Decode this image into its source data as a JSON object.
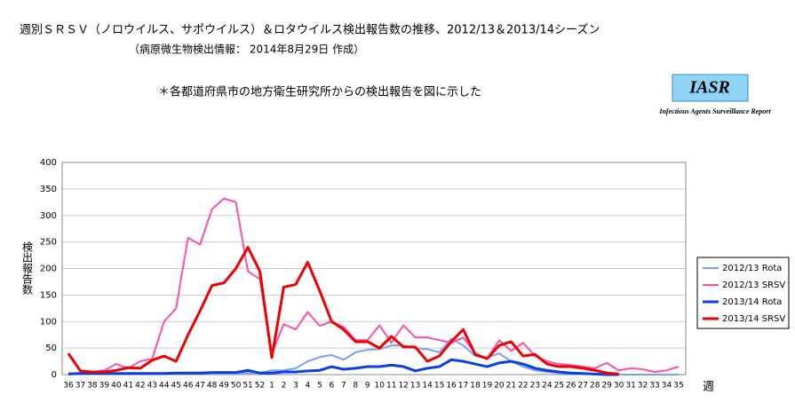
{
  "chart_data": {
    "type": "line",
    "title": "週別ＳＲＳＶ（ノロウイルス、サポウイルス）＆ロタウイルス検出報告数の推移、2012/13＆2013/14シーズン",
    "subtitle": "（病原微生物検出情報： 2014年8月29日 作成）",
    "annotation": "＊各都道府県市の地方衛生研究所からの検出報告を図に示した",
    "logo": "IASR",
    "logo_caption": "Infectious Agents Surveillance Report",
    "ylabel": "検出報告数",
    "xlabel": "週",
    "categories": [
      "36",
      "37",
      "38",
      "39",
      "40",
      "41",
      "42",
      "43",
      "44",
      "45",
      "46",
      "47",
      "48",
      "49",
      "50",
      "51",
      "52",
      "1",
      "2",
      "3",
      "4",
      "5",
      "6",
      "7",
      "8",
      "9",
      "10",
      "11",
      "12",
      "13",
      "14",
      "15",
      "16",
      "17",
      "18",
      "19",
      "20",
      "21",
      "22",
      "23",
      "24",
      "25",
      "26",
      "27",
      "28",
      "29",
      "30",
      "31",
      "32",
      "33",
      "34",
      "35"
    ],
    "ylim": [
      0,
      400
    ],
    "yticks": [
      0,
      50,
      100,
      150,
      200,
      250,
      300,
      350,
      400
    ],
    "legend": "right",
    "series": [
      {
        "name": "2012/13 Rota",
        "color": "#7b9ff0",
        "width": 2,
        "values": [
          2,
          2,
          2,
          2,
          2,
          2,
          2,
          2,
          2,
          3,
          3,
          3,
          3,
          3,
          3,
          3,
          3,
          8,
          8,
          12,
          25,
          33,
          37,
          28,
          42,
          47,
          48,
          55,
          55,
          50,
          48,
          42,
          68,
          55,
          35,
          32,
          40,
          25,
          15,
          8,
          5,
          3,
          2,
          1,
          1,
          0,
          0,
          0,
          0,
          0,
          0,
          0
        ]
      },
      {
        "name": "2012/13 SRSV",
        "color": "#ff4fae",
        "width": 2,
        "values": [
          2,
          3,
          5,
          8,
          20,
          12,
          25,
          30,
          100,
          125,
          258,
          245,
          312,
          332,
          325,
          195,
          180,
          40,
          95,
          85,
          118,
          92,
          100,
          90,
          65,
          65,
          93,
          60,
          93,
          70,
          70,
          65,
          60,
          70,
          40,
          30,
          65,
          45,
          60,
          35,
          25,
          20,
          18,
          15,
          12,
          22,
          8,
          12,
          10,
          5,
          8,
          15
        ]
      },
      {
        "name": "2013/14 Rota",
        "color": "#0a3fe0",
        "width": 3,
        "values": [
          1,
          2,
          2,
          2,
          2,
          2,
          2,
          2,
          2,
          3,
          3,
          3,
          4,
          4,
          4,
          8,
          3,
          3,
          5,
          5,
          7,
          8,
          15,
          10,
          12,
          15,
          15,
          18,
          15,
          7,
          12,
          15,
          28,
          25,
          20,
          15,
          22,
          25,
          20,
          12,
          8,
          5,
          3,
          2,
          1,
          0,
          0,
          null,
          null,
          null,
          null,
          null
        ]
      },
      {
        "name": "2013/14 SRSV",
        "color": "#ee0000",
        "width": 3,
        "values": [
          40,
          7,
          5,
          5,
          8,
          13,
          12,
          27,
          35,
          25,
          75,
          120,
          168,
          173,
          200,
          240,
          195,
          32,
          165,
          170,
          212,
          158,
          100,
          85,
          62,
          62,
          50,
          72,
          52,
          52,
          25,
          35,
          62,
          85,
          38,
          30,
          55,
          62,
          35,
          38,
          20,
          15,
          15,
          12,
          8,
          3,
          1,
          null,
          null,
          null,
          null,
          null
        ]
      }
    ]
  }
}
